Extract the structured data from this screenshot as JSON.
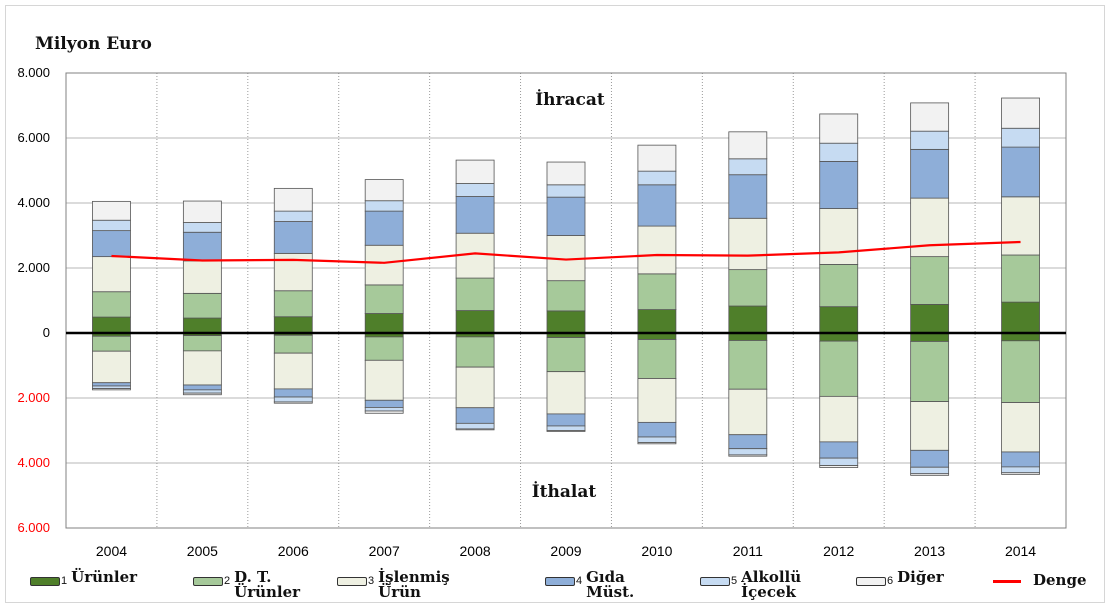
{
  "chart_data": {
    "type": "bar",
    "stacked": true,
    "unit_label": "Milyon Euro",
    "upper_label": "İhracat",
    "lower_label": "İthalat",
    "y_axis": {
      "range": [
        -6000,
        8000
      ],
      "tick_values": [
        8000,
        6000,
        4000,
        2000,
        0,
        -2000,
        -4000,
        -6000
      ],
      "tick_labels": [
        "8.000",
        "6.000",
        "4.000",
        "2.000",
        "0",
        "2.000",
        "4.000",
        "6.000"
      ]
    },
    "grid": true,
    "categories": [
      "2004",
      "2005",
      "2006",
      "2007",
      "2008",
      "2009",
      "2010",
      "2011",
      "2012",
      "2013",
      "2014"
    ],
    "series": [
      {
        "num": "1",
        "name": "Ürünler",
        "color": "#4f7f2a",
        "export": [
          490,
          460,
          500,
          600,
          690,
          680,
          720,
          830,
          810,
          880,
          950
        ],
        "import": [
          -100,
          -80,
          -70,
          -120,
          -120,
          -140,
          -200,
          -230,
          -250,
          -260,
          -240
        ]
      },
      {
        "num": "2",
        "name": "D. T. Ürünler",
        "color": "#a6c99a",
        "export": [
          780,
          760,
          800,
          880,
          1000,
          930,
          1100,
          1120,
          1300,
          1470,
          1450
        ],
        "import": [
          -460,
          -470,
          -550,
          -720,
          -930,
          -1050,
          -1200,
          -1500,
          -1700,
          -1850,
          -1900
        ]
      },
      {
        "num": "3",
        "name": "İşlenmiş Ürün",
        "color": "#eef0e2",
        "export": [
          1080,
          1000,
          1150,
          1220,
          1380,
          1390,
          1470,
          1580,
          1720,
          1800,
          1790
        ],
        "import": [
          -970,
          -1050,
          -1100,
          -1230,
          -1250,
          -1300,
          -1350,
          -1400,
          -1400,
          -1500,
          -1520
        ]
      },
      {
        "num": "4",
        "name": "Gıda Müst.",
        "color": "#8eaed8",
        "export": [
          800,
          880,
          980,
          1050,
          1130,
          1180,
          1270,
          1340,
          1450,
          1500,
          1530
        ],
        "import": [
          -100,
          -150,
          -250,
          -220,
          -480,
          -370,
          -450,
          -430,
          -500,
          -520,
          -460
        ]
      },
      {
        "num": "5",
        "name": "Alkollü İçecek",
        "color": "#c6dbf2",
        "export": [
          320,
          300,
          320,
          320,
          400,
          380,
          420,
          490,
          560,
          560,
          580
        ],
        "import": [
          -80,
          -100,
          -150,
          -110,
          -170,
          -140,
          -170,
          -190,
          -230,
          -200,
          -180
        ]
      },
      {
        "num": "6",
        "name": "Diğer",
        "color": "#f2f2f2",
        "export": [
          580,
          660,
          700,
          650,
          720,
          700,
          800,
          830,
          900,
          870,
          930
        ],
        "import": [
          -40,
          -50,
          -40,
          -70,
          -30,
          -30,
          -40,
          -40,
          -60,
          -50,
          -50
        ]
      }
    ],
    "line_series": {
      "name": "Denge",
      "color": "#ff0000",
      "values": [
        2370,
        2230,
        2250,
        2160,
        2450,
        2260,
        2400,
        2380,
        2480,
        2700,
        2800
      ]
    }
  }
}
